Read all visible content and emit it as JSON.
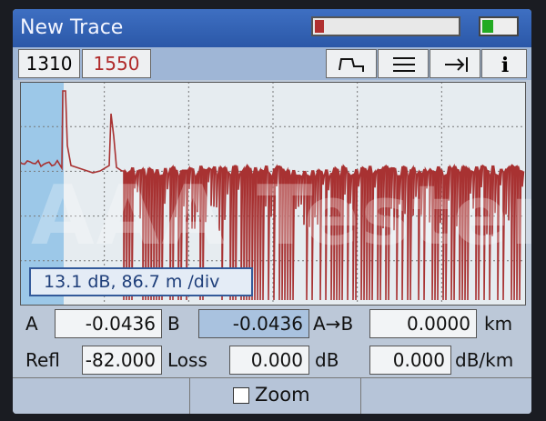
{
  "header": {
    "title": "New Trace"
  },
  "tabs": [
    "1310",
    "1550"
  ],
  "graph": {
    "scale_label": "13.1 dB, 86.7 m /div"
  },
  "watermark": "AAA Testers",
  "fields": {
    "a_label": "A",
    "a_value": "-0.0436",
    "b_label": "B",
    "b_value": "-0.0436",
    "ab_label": "A→B",
    "ab_value": "0.0000",
    "ab_unit": "km",
    "refl_label": "Refl",
    "refl_value": "-82.000",
    "loss_label": "Loss",
    "loss_value": "0.000",
    "loss_unit": "dB",
    "slope_value": "0.000",
    "slope_unit": "dB/km"
  },
  "footer": {
    "zoom": "Zoom"
  }
}
